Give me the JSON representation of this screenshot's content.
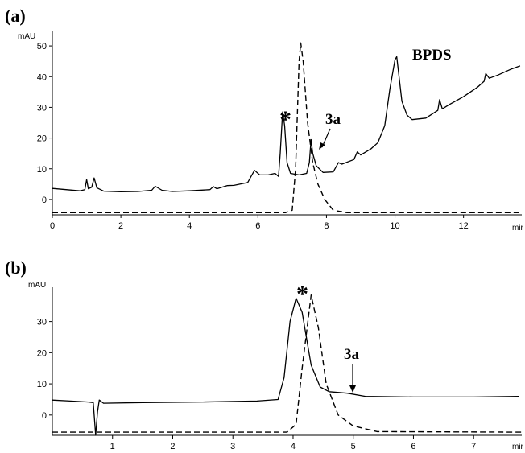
{
  "chart_data": [
    {
      "panel": "(a)",
      "type": "line",
      "y_unit": "mAU",
      "x_unit": "min",
      "xlim": [
        0,
        13.7
      ],
      "ylim": [
        -5,
        55
      ],
      "xticks": [
        0,
        2,
        4,
        6,
        8,
        10,
        12
      ],
      "yticks": [
        0,
        10,
        20,
        30,
        40,
        50
      ],
      "series": [
        {
          "style": "solid",
          "points": [
            [
              0,
              3.6
            ],
            [
              0.4,
              3.2
            ],
            [
              0.8,
              2.8
            ],
            [
              0.95,
              3.2
            ],
            [
              1.0,
              6.5
            ],
            [
              1.05,
              3.5
            ],
            [
              1.15,
              4.0
            ],
            [
              1.22,
              7.0
            ],
            [
              1.3,
              3.8
            ],
            [
              1.5,
              2.7
            ],
            [
              2.0,
              2.5
            ],
            [
              2.5,
              2.6
            ],
            [
              2.9,
              3.0
            ],
            [
              3.0,
              4.3
            ],
            [
              3.2,
              3.0
            ],
            [
              3.5,
              2.6
            ],
            [
              4.0,
              2.8
            ],
            [
              4.6,
              3.2
            ],
            [
              4.7,
              4.2
            ],
            [
              4.8,
              3.5
            ],
            [
              5.1,
              4.5
            ],
            [
              5.3,
              4.6
            ],
            [
              5.7,
              5.5
            ],
            [
              5.8,
              7.5
            ],
            [
              5.9,
              9.5
            ],
            [
              6.05,
              8.0
            ],
            [
              6.3,
              8.0
            ],
            [
              6.5,
              8.5
            ],
            [
              6.6,
              7.5
            ],
            [
              6.65,
              15.0
            ],
            [
              6.72,
              28.5
            ],
            [
              6.78,
              24.0
            ],
            [
              6.85,
              12.0
            ],
            [
              6.95,
              8.5
            ],
            [
              7.2,
              8.0
            ],
            [
              7.42,
              8.5
            ],
            [
              7.5,
              12.0
            ],
            [
              7.55,
              19.5
            ],
            [
              7.6,
              15.0
            ],
            [
              7.7,
              11.0
            ],
            [
              7.9,
              8.8
            ],
            [
              8.2,
              9.0
            ],
            [
              8.35,
              12.0
            ],
            [
              8.45,
              11.5
            ],
            [
              8.8,
              13.0
            ],
            [
              8.9,
              15.5
            ],
            [
              9.0,
              14.5
            ],
            [
              9.3,
              16.5
            ],
            [
              9.5,
              18.5
            ],
            [
              9.7,
              24.0
            ],
            [
              9.85,
              36.0
            ],
            [
              10.0,
              45.5
            ],
            [
              10.05,
              46.5
            ],
            [
              10.2,
              32.0
            ],
            [
              10.35,
              27.5
            ],
            [
              10.5,
              26.0
            ],
            [
              10.9,
              26.5
            ],
            [
              11.25,
              29.0
            ],
            [
              11.3,
              32.5
            ],
            [
              11.38,
              29.5
            ],
            [
              11.6,
              31.0
            ],
            [
              12.0,
              33.5
            ],
            [
              12.4,
              36.5
            ],
            [
              12.6,
              38.5
            ],
            [
              12.65,
              41.0
            ],
            [
              12.75,
              39.5
            ],
            [
              13.0,
              40.5
            ],
            [
              13.4,
              42.5
            ],
            [
              13.65,
              43.5
            ]
          ]
        },
        {
          "style": "dashed",
          "points": [
            [
              0,
              -4.3
            ],
            [
              6.8,
              -4.3
            ],
            [
              7.0,
              -3.5
            ],
            [
              7.1,
              10.0
            ],
            [
              7.2,
              45.0
            ],
            [
              7.25,
              51.0
            ],
            [
              7.32,
              45.0
            ],
            [
              7.45,
              25.0
            ],
            [
              7.6,
              12.0
            ],
            [
              7.75,
              5.0
            ],
            [
              7.95,
              0.0
            ],
            [
              8.2,
              -3.5
            ],
            [
              8.6,
              -4.3
            ],
            [
              13.7,
              -4.3
            ]
          ]
        }
      ],
      "annotations": [
        {
          "text": "*",
          "x": 6.72,
          "y": 30
        },
        {
          "text": "3a",
          "x": 7.9,
          "y": 30
        },
        {
          "text": "BPDS",
          "x": 10.6,
          "y": 46
        }
      ]
    },
    {
      "panel": "(b)",
      "type": "line",
      "y_unit": "mAU",
      "x_unit": "min",
      "xlim": [
        0,
        7.8
      ],
      "ylim": [
        -6.5,
        41
      ],
      "xticks": [
        1,
        2,
        3,
        4,
        5,
        6,
        7
      ],
      "yticks": [
        0,
        10,
        20,
        30
      ],
      "series": [
        {
          "style": "solid",
          "points": [
            [
              0,
              4.8
            ],
            [
              0.3,
              4.5
            ],
            [
              0.6,
              4.2
            ],
            [
              0.68,
              4.0
            ],
            [
              0.72,
              -6.5
            ],
            [
              0.75,
              1.0
            ],
            [
              0.78,
              4.8
            ],
            [
              0.85,
              3.8
            ],
            [
              1.5,
              4.0
            ],
            [
              2.5,
              4.2
            ],
            [
              3.4,
              4.5
            ],
            [
              3.75,
              5.0
            ],
            [
              3.85,
              12.0
            ],
            [
              3.95,
              30.0
            ],
            [
              4.05,
              37.5
            ],
            [
              4.15,
              33.0
            ],
            [
              4.3,
              16.0
            ],
            [
              4.45,
              9.0
            ],
            [
              4.6,
              7.5
            ],
            [
              4.9,
              7.0
            ],
            [
              5.2,
              6.0
            ],
            [
              6.0,
              5.8
            ],
            [
              7.0,
              5.8
            ],
            [
              7.75,
              6.0
            ]
          ]
        },
        {
          "style": "dashed",
          "points": [
            [
              0,
              -5.5
            ],
            [
              3.9,
              -5.5
            ],
            [
              4.05,
              -3.0
            ],
            [
              4.15,
              15.0
            ],
            [
              4.3,
              38.5
            ],
            [
              4.42,
              28.0
            ],
            [
              4.55,
              10.0
            ],
            [
              4.75,
              0.0
            ],
            [
              5.0,
              -3.5
            ],
            [
              5.4,
              -5.3
            ],
            [
              7.8,
              -5.5
            ]
          ]
        }
      ],
      "annotations": [
        {
          "text": "*",
          "x": 4.05,
          "y": 38.8
        },
        {
          "text": "3a",
          "x": 4.9,
          "y": 15.5
        }
      ]
    }
  ],
  "labels": {
    "panel_a": "(a)",
    "panel_b": "(b)",
    "unit_a_y": "mAU",
    "unit_a_x": "mir",
    "unit_b_y": "mAU",
    "unit_b_x": "mir",
    "a_star": "*",
    "a_3a": "3a",
    "a_bpds": "BPDS",
    "b_star": "*",
    "b_3a": "3a"
  }
}
